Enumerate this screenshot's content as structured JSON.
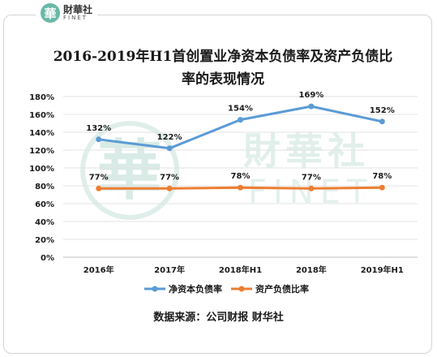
{
  "logo": {
    "mark": "華",
    "name_cn": "財華社",
    "name_en": "FINET"
  },
  "watermark": {
    "mark": "華",
    "name_cn": "財華社",
    "name_en": "FINET"
  },
  "source_text": "数据来源：公司财报  财华社",
  "colors": {
    "series1": "#5b9bd5",
    "series2": "#ed7d31",
    "watermark": "#c9e3dc"
  },
  "chart_data": {
    "type": "line",
    "title": "2016-2019年H1首创置业净资本负债率及资产负债比率的表现情况",
    "title_lines": [
      "2016-2019年H1首创置业净资本负债率及资产负债比",
      "率的表现情况"
    ],
    "categories": [
      "2016年",
      "2017年",
      "2018年H1",
      "2018年",
      "2019年H1"
    ],
    "series": [
      {
        "name": "净资本负债率",
        "values": [
          132,
          122,
          154,
          169,
          152
        ],
        "labels": [
          "132%",
          "122%",
          "154%",
          "169%",
          "152%"
        ]
      },
      {
        "name": "资产负债比率",
        "values": [
          77,
          77,
          78,
          77,
          78
        ],
        "labels": [
          "77%",
          "77%",
          "78%",
          "77%",
          "78%"
        ]
      }
    ],
    "ylim": [
      0,
      180
    ],
    "yticks": [
      0,
      20,
      40,
      60,
      80,
      100,
      120,
      140,
      160,
      180
    ],
    "ytick_labels": [
      "0%",
      "20%",
      "40%",
      "60%",
      "80%",
      "100%",
      "120%",
      "140%",
      "160%",
      "180%"
    ],
    "grid": true,
    "legend": "bottom"
  }
}
